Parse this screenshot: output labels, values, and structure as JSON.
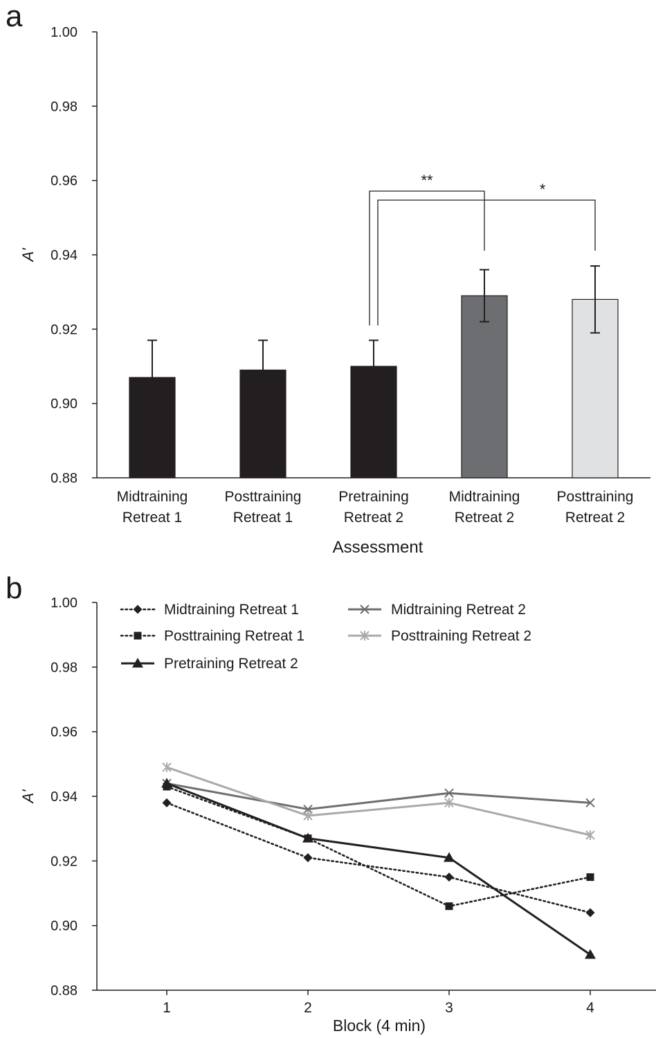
{
  "panel_a_label": "a",
  "panel_b_label": "b",
  "chart_data": [
    {
      "type": "bar",
      "panel": "a",
      "categories": [
        [
          "Midtraining",
          "Retreat 1"
        ],
        [
          "Posttraining",
          "Retreat 1"
        ],
        [
          "Pretraining",
          "Retreat 2"
        ],
        [
          "Midtraining",
          "Retreat 2"
        ],
        [
          "Posttraining",
          "Retreat 2"
        ]
      ],
      "values": [
        0.907,
        0.909,
        0.91,
        0.929,
        0.928
      ],
      "error_upper": [
        0.917,
        0.917,
        0.917,
        0.936,
        0.937
      ],
      "error_lower": [
        null,
        null,
        null,
        0.922,
        0.919
      ],
      "bar_colors": [
        "#231f20",
        "#231f20",
        "#231f20",
        "#6d6e71",
        "#e0e1e2"
      ],
      "ylim": [
        0.88,
        1.0
      ],
      "yticks": [
        "0.88",
        "0.90",
        "0.92",
        "0.94",
        "0.96",
        "0.98",
        "1.00"
      ],
      "ylabel": "A'",
      "xlabel": "Assessment",
      "significance": [
        {
          "from": 2,
          "to": 3,
          "label": "**"
        },
        {
          "from": 2,
          "to": 4,
          "label": "*"
        }
      ]
    },
    {
      "type": "line",
      "panel": "b",
      "x": [
        1,
        2,
        3,
        4
      ],
      "xticks": [
        "1",
        "2",
        "3",
        "4"
      ],
      "ylim": [
        0.88,
        1.0
      ],
      "yticks": [
        "0.88",
        "0.90",
        "0.92",
        "0.94",
        "0.96",
        "0.98",
        "1.00"
      ],
      "ylabel": "A'",
      "xlabel": "Block (4 min)",
      "legend_position": "top",
      "series": [
        {
          "name": "Midtraining Retreat 1",
          "values": [
            0.938,
            0.921,
            0.915,
            0.904
          ],
          "color": "#231f20",
          "style": "dotted",
          "marker": "diamond"
        },
        {
          "name": "Posttraining Retreat 1",
          "values": [
            0.943,
            0.927,
            0.906,
            0.915
          ],
          "color": "#231f20",
          "style": "dotted",
          "marker": "square"
        },
        {
          "name": "Pretraining Retreat 2",
          "values": [
            0.944,
            0.927,
            0.921,
            0.891
          ],
          "color": "#231f20",
          "style": "solid",
          "marker": "triangle"
        },
        {
          "name": "Midtraining Retreat 2",
          "values": [
            0.944,
            0.936,
            0.941,
            0.938
          ],
          "color": "#6d6e71",
          "style": "solid",
          "marker": "x"
        },
        {
          "name": "Posttraining Retreat 2",
          "values": [
            0.949,
            0.934,
            0.938,
            0.928
          ],
          "color": "#a7a9ac",
          "style": "solid",
          "marker": "asterisk"
        }
      ]
    }
  ]
}
